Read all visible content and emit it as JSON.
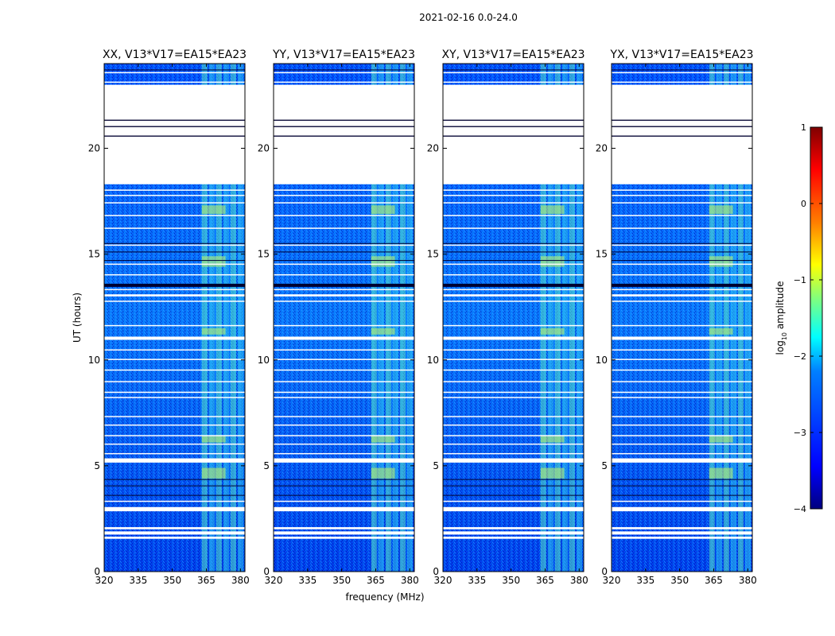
{
  "figure_title": "2021-02-16 0.0-24.0",
  "colors": {
    "no_data": "#ffffff",
    "frame": "#000000",
    "colormap": [
      "#00007f",
      "#0000ff",
      "#007fff",
      "#00ffff",
      "#7fff7f",
      "#ffff00",
      "#ff7f00",
      "#ff0000",
      "#7f0000"
    ]
  },
  "chart_data": [
    {
      "type": "heatmap",
      "title": "XX, V13*V17=EA15*EA23",
      "xlabel": "",
      "ylabel": "UT (hours)",
      "xlim": [
        320,
        382
      ],
      "ylim": [
        0,
        24
      ],
      "xticks": [
        320,
        335,
        350,
        365,
        380
      ],
      "yticks": [
        0,
        5,
        10,
        15,
        20
      ],
      "flagged_ut_hours": [
        [
          18.3,
          23.0
        ]
      ],
      "rfi_band_mhz": [
        363,
        382
      ]
    },
    {
      "type": "heatmap",
      "title": "YY, V13*V17=EA15*EA23",
      "xlabel": "frequency (MHz)",
      "ylabel": "",
      "xlim": [
        320,
        382
      ],
      "ylim": [
        0,
        24
      ],
      "xticks": [
        320,
        335,
        350,
        365,
        380
      ],
      "yticks": [
        0,
        5,
        10,
        15,
        20
      ],
      "flagged_ut_hours": [
        [
          18.3,
          23.0
        ]
      ],
      "rfi_band_mhz": [
        363,
        382
      ]
    },
    {
      "type": "heatmap",
      "title": "XY, V13*V17=EA15*EA23",
      "xlabel": "",
      "ylabel": "",
      "xlim": [
        320,
        382
      ],
      "ylim": [
        0,
        24
      ],
      "xticks": [
        320,
        335,
        350,
        365,
        380
      ],
      "yticks": [
        0,
        5,
        10,
        15,
        20
      ],
      "flagged_ut_hours": [
        [
          18.3,
          23.0
        ]
      ],
      "rfi_band_mhz": [
        363,
        382
      ]
    },
    {
      "type": "heatmap",
      "title": "YX, V13*V17=EA15*EA23",
      "xlabel": "",
      "ylabel": "",
      "xlim": [
        320,
        382
      ],
      "ylim": [
        0,
        24
      ],
      "xticks": [
        320,
        335,
        350,
        365,
        380
      ],
      "yticks": [
        0,
        5,
        10,
        15,
        20
      ],
      "flagged_ut_hours": [
        [
          18.3,
          23.0
        ]
      ],
      "rfi_band_mhz": [
        363,
        382
      ]
    }
  ],
  "colorbar": {
    "label": "log",
    "label_subscript": "10",
    "label_rest": " amplitude",
    "range": [
      -4,
      1
    ],
    "ticks": [
      "1",
      "0",
      "−1",
      "−2",
      "−3",
      "−4"
    ]
  }
}
